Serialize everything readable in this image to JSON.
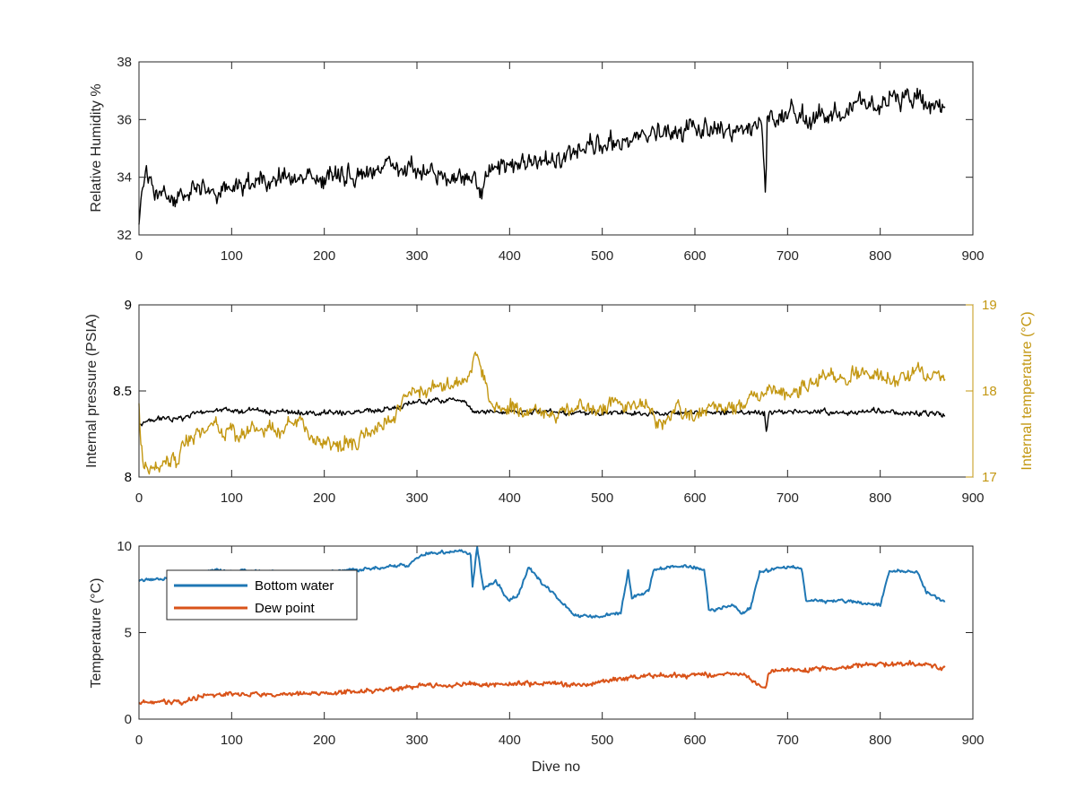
{
  "chart_data": [
    {
      "type": "line",
      "title": "",
      "xlabel": "",
      "ylabel": "Relative Humidity %",
      "xlim": [
        0,
        900
      ],
      "ylim": [
        32,
        38
      ],
      "xticks": [
        "0",
        "100",
        "200",
        "300",
        "400",
        "500",
        "600",
        "700",
        "800",
        "900"
      ],
      "yticks": [
        "32",
        "34",
        "36",
        "38"
      ],
      "grid": false,
      "series": [
        {
          "color": "#000000",
          "noise": 0.45,
          "points": [
            [
              0,
              32.2
            ],
            [
              3,
              33.6
            ],
            [
              8,
              34.2
            ],
            [
              20,
              33.3
            ],
            [
              40,
              33.2
            ],
            [
              60,
              33.6
            ],
            [
              80,
              33.5
            ],
            [
              100,
              33.6
            ],
            [
              120,
              33.8
            ],
            [
              150,
              34.0
            ],
            [
              170,
              34.0
            ],
            [
              200,
              34.0
            ],
            [
              230,
              34.1
            ],
            [
              260,
              34.2
            ],
            [
              280,
              34.5
            ],
            [
              300,
              34.2
            ],
            [
              340,
              34.0
            ],
            [
              370,
              33.7
            ],
            [
              375,
              34.1
            ],
            [
              400,
              34.3
            ],
            [
              430,
              34.6
            ],
            [
              470,
              34.8
            ],
            [
              500,
              35.2
            ],
            [
              530,
              35.3
            ],
            [
              560,
              35.6
            ],
            [
              600,
              35.6
            ],
            [
              640,
              35.5
            ],
            [
              665,
              35.6
            ],
            [
              672,
              36.0
            ],
            [
              676,
              33.2
            ],
            [
              678,
              35.8
            ],
            [
              700,
              36.3
            ],
            [
              730,
              36.0
            ],
            [
              760,
              36.4
            ],
            [
              800,
              36.6
            ],
            [
              830,
              36.7
            ],
            [
              850,
              36.6
            ],
            [
              870,
              36.4
            ]
          ]
        }
      ]
    },
    {
      "type": "line",
      "title": "",
      "xlabel": "",
      "ylabel": "Internal pressure (PSIA)",
      "y2label": "Internal temperature (°C)",
      "xlim": [
        0,
        900
      ],
      "ylim": [
        8,
        9
      ],
      "y2lim": [
        17,
        19
      ],
      "xticks": [
        "0",
        "100",
        "200",
        "300",
        "400",
        "500",
        "600",
        "700",
        "800",
        "900"
      ],
      "yticks": [
        "8",
        "8.5",
        "9"
      ],
      "y2ticks": [
        "17",
        "18",
        "19"
      ],
      "grid": false,
      "series": [
        {
          "axis": "left",
          "color": "#000000",
          "noise": 0.02,
          "points": [
            [
              0,
              8.31
            ],
            [
              10,
              8.32
            ],
            [
              20,
              8.34
            ],
            [
              50,
              8.34
            ],
            [
              55,
              8.35
            ],
            [
              60,
              8.38
            ],
            [
              100,
              8.39
            ],
            [
              150,
              8.38
            ],
            [
              200,
              8.37
            ],
            [
              250,
              8.38
            ],
            [
              280,
              8.41
            ],
            [
              300,
              8.44
            ],
            [
              350,
              8.45
            ],
            [
              360,
              8.39
            ],
            [
              400,
              8.38
            ],
            [
              500,
              8.37
            ],
            [
              600,
              8.38
            ],
            [
              675,
              8.37
            ],
            [
              677,
              8.25
            ],
            [
              680,
              8.38
            ],
            [
              750,
              8.38
            ],
            [
              800,
              8.38
            ],
            [
              870,
              8.36
            ]
          ]
        },
        {
          "axis": "right",
          "color": "#c39712",
          "noise": 0.12,
          "points": [
            [
              0,
              17.9
            ],
            [
              2,
              17.4
            ],
            [
              5,
              17.1
            ],
            [
              15,
              17.05
            ],
            [
              40,
              17.2
            ],
            [
              60,
              17.5
            ],
            [
              80,
              17.6
            ],
            [
              100,
              17.5
            ],
            [
              130,
              17.55
            ],
            [
              150,
              17.5
            ],
            [
              170,
              17.7
            ],
            [
              190,
              17.4
            ],
            [
              220,
              17.4
            ],
            [
              250,
              17.5
            ],
            [
              270,
              17.6
            ],
            [
              285,
              17.95
            ],
            [
              300,
              18.0
            ],
            [
              320,
              18.05
            ],
            [
              350,
              18.1
            ],
            [
              365,
              18.4
            ],
            [
              380,
              17.9
            ],
            [
              400,
              17.8
            ],
            [
              450,
              17.75
            ],
            [
              500,
              17.8
            ],
            [
              550,
              17.85
            ],
            [
              560,
              17.6
            ],
            [
              580,
              17.8
            ],
            [
              600,
              17.7
            ],
            [
              620,
              17.8
            ],
            [
              650,
              17.85
            ],
            [
              680,
              18.0
            ],
            [
              700,
              18.0
            ],
            [
              730,
              18.1
            ],
            [
              760,
              18.2
            ],
            [
              790,
              18.2
            ],
            [
              810,
              18.1
            ],
            [
              840,
              18.2
            ],
            [
              870,
              18.15
            ]
          ]
        }
      ]
    },
    {
      "type": "line",
      "title": "",
      "xlabel": "Dive no",
      "ylabel": "Temperature (°C)",
      "xlim": [
        0,
        900
      ],
      "ylim": [
        0,
        10
      ],
      "xticks": [
        "0",
        "100",
        "200",
        "300",
        "400",
        "500",
        "600",
        "700",
        "800",
        "900"
      ],
      "yticks": [
        "0",
        "5",
        "10"
      ],
      "grid": false,
      "legend": "top-left",
      "series": [
        {
          "name": "Bottom water",
          "color": "#1f77b4",
          "noise": 0.12,
          "points": [
            [
              0,
              8.0
            ],
            [
              50,
              8.3
            ],
            [
              80,
              8.6
            ],
            [
              150,
              8.5
            ],
            [
              200,
              8.5
            ],
            [
              250,
              8.7
            ],
            [
              290,
              8.9
            ],
            [
              310,
              9.6
            ],
            [
              350,
              9.7
            ],
            [
              358,
              9.5
            ],
            [
              360,
              7.6
            ],
            [
              365,
              9.9
            ],
            [
              372,
              7.5
            ],
            [
              385,
              8.0
            ],
            [
              400,
              6.8
            ],
            [
              410,
              7.2
            ],
            [
              420,
              8.8
            ],
            [
              440,
              7.6
            ],
            [
              470,
              6.0
            ],
            [
              490,
              5.9
            ],
            [
              520,
              6.1
            ],
            [
              528,
              8.6
            ],
            [
              532,
              7.0
            ],
            [
              550,
              7.4
            ],
            [
              555,
              8.6
            ],
            [
              575,
              8.8
            ],
            [
              600,
              8.8
            ],
            [
              610,
              8.6
            ],
            [
              615,
              6.3
            ],
            [
              640,
              6.6
            ],
            [
              650,
              6.1
            ],
            [
              660,
              6.4
            ],
            [
              670,
              8.5
            ],
            [
              700,
              8.8
            ],
            [
              715,
              8.7
            ],
            [
              720,
              6.9
            ],
            [
              760,
              6.8
            ],
            [
              800,
              6.6
            ],
            [
              810,
              8.6
            ],
            [
              840,
              8.5
            ],
            [
              850,
              7.3
            ],
            [
              870,
              6.8
            ]
          ]
        },
        {
          "name": "Dew point",
          "color": "#d95319",
          "noise": 0.18,
          "points": [
            [
              0,
              0.9
            ],
            [
              50,
              1.0
            ],
            [
              70,
              1.4
            ],
            [
              100,
              1.4
            ],
            [
              150,
              1.4
            ],
            [
              200,
              1.5
            ],
            [
              250,
              1.6
            ],
            [
              300,
              1.9
            ],
            [
              350,
              2.0
            ],
            [
              400,
              2.0
            ],
            [
              450,
              2.1
            ],
            [
              470,
              1.9
            ],
            [
              500,
              2.2
            ],
            [
              550,
              2.5
            ],
            [
              600,
              2.5
            ],
            [
              650,
              2.6
            ],
            [
              676,
              1.8
            ],
            [
              680,
              2.7
            ],
            [
              700,
              2.9
            ],
            [
              750,
              2.9
            ],
            [
              800,
              3.2
            ],
            [
              850,
              3.2
            ],
            [
              870,
              3.0
            ]
          ]
        }
      ]
    }
  ]
}
